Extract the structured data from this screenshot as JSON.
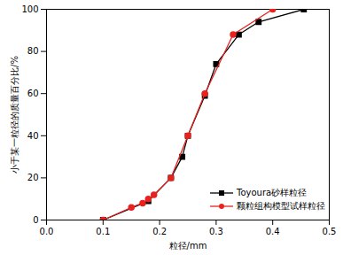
{
  "chart_data": {
    "type": "line",
    "x_label": "粒径/mm",
    "y_label": "小于某一粒径的质量百分比/%",
    "xlim": [
      0,
      0.5
    ],
    "xticks": [
      {
        "value": 0,
        "label": "0.0"
      },
      {
        "value": 0.1,
        "label": "0.1"
      },
      {
        "value": 0.2,
        "label": "0.2"
      },
      {
        "value": 0.3,
        "label": "0.3"
      },
      {
        "value": 0.4,
        "label": "0.4"
      },
      {
        "value": 0.5,
        "label": "0.5"
      }
    ],
    "ylim": [
      0,
      100
    ],
    "yticks": [
      0,
      20,
      40,
      60,
      80,
      100
    ],
    "grid": false,
    "legend": "lower right",
    "series": [
      {
        "name": "Toyoura砂样粒径",
        "color": "#000000",
        "marker": "square",
        "x": [
          0.1,
          0.18,
          0.22,
          0.24,
          0.25,
          0.28,
          0.3,
          0.34,
          0.375,
          0.455
        ],
        "values": [
          0,
          9,
          20,
          30,
          40,
          59,
          74,
          88,
          94,
          100
        ]
      },
      {
        "name": "颗粒组构模型试样粒径",
        "color": "#e8221f",
        "marker": "circle",
        "x": [
          0.1,
          0.15,
          0.17,
          0.18,
          0.19,
          0.22,
          0.25,
          0.28,
          0.33,
          0.4
        ],
        "values": [
          0,
          6,
          8,
          10,
          12,
          20,
          40,
          60,
          88,
          100
        ]
      }
    ]
  }
}
